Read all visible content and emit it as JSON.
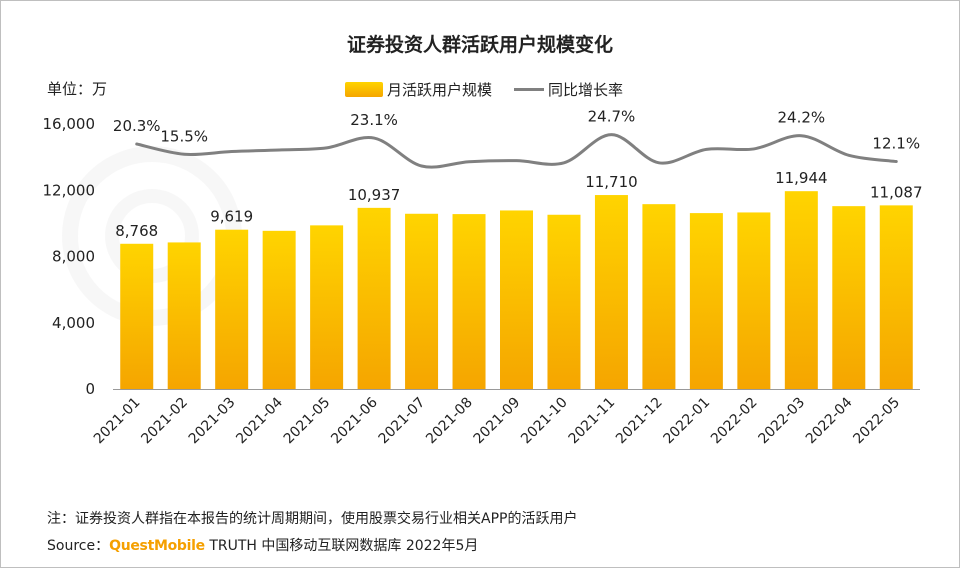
{
  "chart_data": {
    "type": "bar+line",
    "title": "证券投资人群活跃用户规模变化",
    "unit_label": "单位：万",
    "categories": [
      "2021-01",
      "2021-02",
      "2021-03",
      "2021-04",
      "2021-05",
      "2021-06",
      "2021-07",
      "2021-08",
      "2021-09",
      "2021-10",
      "2021-11",
      "2021-12",
      "2022-01",
      "2022-02",
      "2022-03",
      "2022-04",
      "2022-05"
    ],
    "series": [
      {
        "name": "月活跃用户规模",
        "type": "bar",
        "values": [
          8768,
          8850,
          9619,
          9550,
          9880,
          10937,
          10580,
          10560,
          10780,
          10520,
          11710,
          11160,
          10620,
          10660,
          11944,
          11040,
          11087
        ],
        "labels": [
          "8,768",
          "",
          "9,619",
          "",
          "",
          "10,937",
          "",
          "",
          "",
          "",
          "11,710",
          "",
          "",
          "",
          "11,944",
          "",
          "11,087"
        ]
      },
      {
        "name": "同比增长率",
        "type": "line",
        "values": [
          20.3,
          15.5,
          16.8,
          17.5,
          18.5,
          23.1,
          10.0,
          12.0,
          12.5,
          11.5,
          24.7,
          11.5,
          17.8,
          18.0,
          24.2,
          15.0,
          12.1
        ],
        "labels": [
          "20.3%",
          "15.5%",
          "",
          "",
          "",
          "23.1%",
          "",
          "",
          "",
          "",
          "24.7%",
          "",
          "",
          "",
          "24.2%",
          "",
          "12.1%"
        ]
      }
    ],
    "y_axis": {
      "min": 0,
      "max": 16000,
      "ticks": [
        "0",
        "4,000",
        "8,000",
        "12,000",
        "16,000"
      ]
    },
    "colors": {
      "bar_top": "#ffd400",
      "bar_bottom": "#f5a500",
      "line": "#808080"
    }
  },
  "legend": {
    "bar_label": "月活跃用户规模",
    "line_label": "同比增长率"
  },
  "footer": {
    "note": "注：证券投资人群指在本报告的统计周期期间，使用股票交易行业相关APP的活跃用户",
    "source_prefix": "Source：",
    "source_brand": "QuestMobile",
    "source_suffix": "TRUTH 中国移动互联网数据库 2022年5月"
  }
}
